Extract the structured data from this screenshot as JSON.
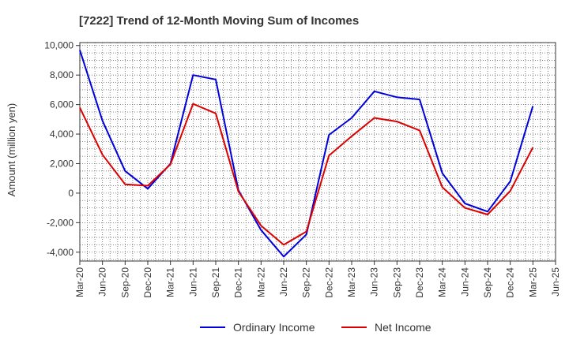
{
  "chart_data": {
    "type": "line",
    "title": "[7222]  Trend of 12-Month Moving Sum of Incomes",
    "xlabel": "",
    "ylabel": "Amount (million yen)",
    "categories": [
      "Mar-20",
      "Jun-20",
      "Sep-20",
      "Dec-20",
      "Mar-21",
      "Jun-21",
      "Sep-21",
      "Dec-21",
      "Mar-22",
      "Jun-22",
      "Sep-22",
      "Dec-22",
      "Mar-23",
      "Jun-23",
      "Sep-23",
      "Dec-23",
      "Mar-24",
      "Jun-24",
      "Sep-24",
      "Dec-24",
      "Mar-25",
      "Jun-25"
    ],
    "ylim": [
      -4600,
      10200
    ],
    "yticks": [
      -4000,
      -2000,
      0,
      2000,
      4000,
      6000,
      8000,
      10000
    ],
    "ytick_labels": [
      "-4,000",
      "-2,000",
      "0",
      "2,000",
      "4,000",
      "6,000",
      "8,000",
      "10,000"
    ],
    "grid": true,
    "legend_position": "bottom",
    "series": [
      {
        "name": "Ordinary Income",
        "color": "#0000dd",
        "values": [
          9700,
          4900,
          1500,
          300,
          2000,
          8000,
          7700,
          200,
          -2500,
          -4300,
          -2800,
          3950,
          5100,
          6900,
          6500,
          6350,
          1350,
          -700,
          -1250,
          800,
          5900,
          null
        ]
      },
      {
        "name": "Net Income",
        "color": "#dd0000",
        "values": [
          5800,
          2600,
          600,
          500,
          1950,
          6050,
          5400,
          100,
          -2200,
          -3500,
          -2600,
          2550,
          3850,
          5100,
          4850,
          4250,
          400,
          -1000,
          -1450,
          150,
          3100,
          null
        ]
      }
    ]
  }
}
